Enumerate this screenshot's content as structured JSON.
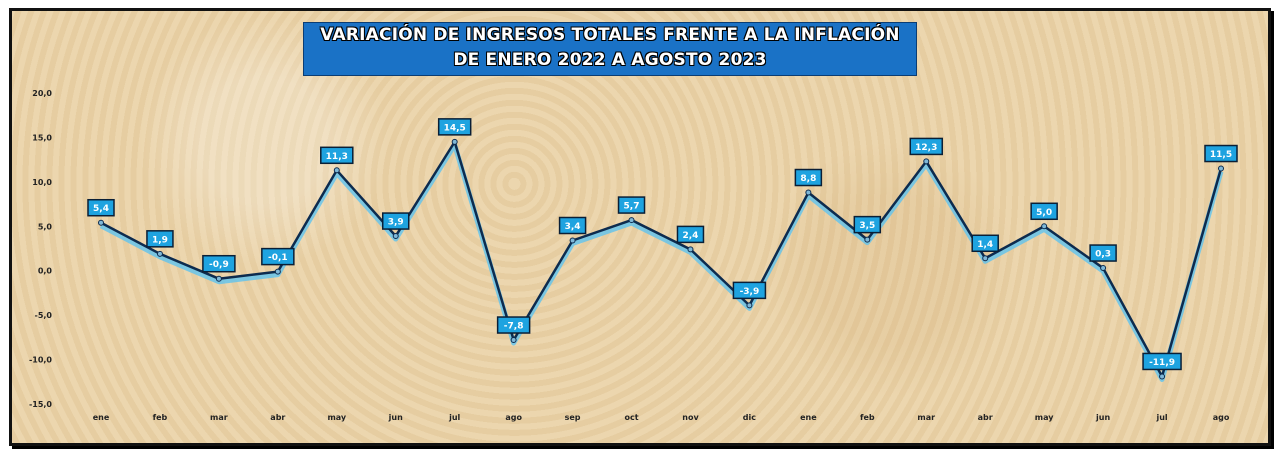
{
  "chart_data": {
    "type": "line",
    "title": [
      "VARIACIÓN DE INGRESOS TOTALES FRENTE A LA INFLACIÓN",
      "DE ENERO 2022 A AGOSTO 2023"
    ],
    "xlabel": "",
    "ylabel": "",
    "categories": [
      "ene",
      "feb",
      "mar",
      "abr",
      "may",
      "jun",
      "jul",
      "ago",
      "sep",
      "oct",
      "nov",
      "dic",
      "ene",
      "feb",
      "mar",
      "abr",
      "may",
      "jun",
      "jul",
      "ago"
    ],
    "values": [
      5.4,
      1.9,
      -0.9,
      -0.1,
      11.3,
      3.9,
      14.5,
      -7.8,
      3.4,
      5.7,
      2.4,
      -3.9,
      8.8,
      3.5,
      12.3,
      1.4,
      5.0,
      0.3,
      -11.9,
      11.5
    ],
    "data_labels": [
      "5,4",
      "1,9",
      "-0,9",
      "-0,1",
      "11,3",
      "3,9",
      "14,5",
      "-7,8",
      "3,4",
      "5,7",
      "2,4",
      "-3,9",
      "8,8",
      "3,5",
      "12,3",
      "1,4",
      "5,0",
      "0,3",
      "-11,9",
      "11,5"
    ],
    "yticks": [
      20,
      15,
      10,
      5,
      0,
      -5,
      -10,
      -15
    ],
    "ytick_labels": [
      "20,0",
      "15,0",
      "10,0",
      "5,0",
      "0,0",
      "-5,0",
      "-10,0",
      "-15,0"
    ],
    "ylim": [
      -15,
      20
    ],
    "grid": false,
    "colors": {
      "line": "#0d2b4e",
      "glow": "#5fc3ef",
      "label_bg": "#1ea3e0",
      "title_bg": "#1a72c6"
    }
  }
}
